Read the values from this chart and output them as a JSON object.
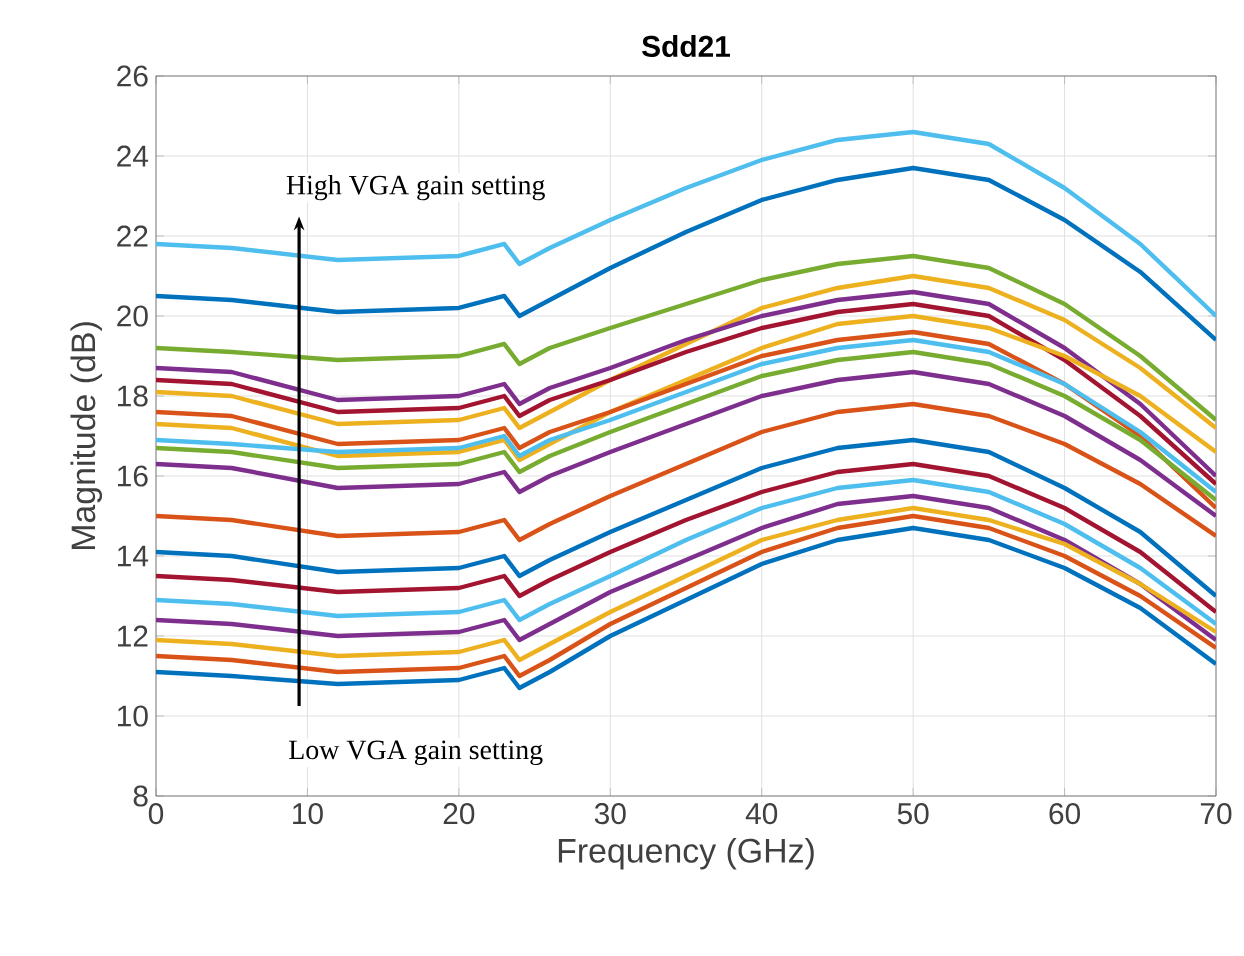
{
  "chart_data": {
    "type": "line",
    "title": "Sdd21",
    "xlabel": "Frequency (GHz)",
    "ylabel": "Magnitude (dB)",
    "xlim": [
      0,
      70
    ],
    "ylim": [
      8,
      26
    ],
    "xticks": [
      0,
      10,
      20,
      30,
      40,
      50,
      60,
      70
    ],
    "yticks": [
      8,
      10,
      12,
      14,
      16,
      18,
      20,
      22,
      24,
      26
    ],
    "grid": true,
    "marker": "none",
    "line_style": "solid",
    "annotations": [
      "High VGA gain setting",
      "Low VGA gain setting"
    ],
    "x": [
      0,
      5,
      12,
      20,
      23,
      24,
      26,
      30,
      35,
      40,
      45,
      50,
      55,
      60,
      65,
      70
    ],
    "series": [
      {
        "color": "#4dbeee",
        "values": [
          21.8,
          21.7,
          21.4,
          21.5,
          21.8,
          21.3,
          21.7,
          22.4,
          23.2,
          23.9,
          24.4,
          24.6,
          24.3,
          23.2,
          21.8,
          20.0
        ]
      },
      {
        "color": "#0072bd",
        "values": [
          20.5,
          20.4,
          20.1,
          20.2,
          20.5,
          20.0,
          20.4,
          21.2,
          22.1,
          22.9,
          23.4,
          23.7,
          23.4,
          22.4,
          21.1,
          19.4
        ]
      },
      {
        "color": "#77ac30",
        "values": [
          19.2,
          19.1,
          18.9,
          19.0,
          19.3,
          18.8,
          19.2,
          19.7,
          20.3,
          20.9,
          21.3,
          21.5,
          21.2,
          20.3,
          19.0,
          17.4
        ]
      },
      {
        "color": "#edb120",
        "values": [
          18.1,
          18.0,
          17.3,
          17.4,
          17.7,
          17.2,
          17.6,
          18.4,
          19.3,
          20.2,
          20.7,
          21.0,
          20.7,
          19.9,
          18.7,
          17.2
        ]
      },
      {
        "color": "#7e2f8e",
        "values": [
          18.7,
          18.6,
          17.9,
          18.0,
          18.3,
          17.8,
          18.2,
          18.7,
          19.4,
          20.0,
          20.4,
          20.6,
          20.3,
          19.2,
          17.8,
          16.0
        ]
      },
      {
        "color": "#a2142f",
        "values": [
          18.4,
          18.3,
          17.6,
          17.7,
          18.0,
          17.5,
          17.9,
          18.4,
          19.1,
          19.7,
          20.1,
          20.3,
          20.0,
          18.9,
          17.5,
          15.8
        ]
      },
      {
        "color": "#edb120",
        "values": [
          17.3,
          17.2,
          16.5,
          16.6,
          16.9,
          16.4,
          16.8,
          17.6,
          18.4,
          19.2,
          19.8,
          20.0,
          19.7,
          19.0,
          18.0,
          16.6
        ]
      },
      {
        "color": "#d95319",
        "values": [
          17.6,
          17.5,
          16.8,
          16.9,
          17.2,
          16.7,
          17.1,
          17.6,
          18.3,
          19.0,
          19.4,
          19.6,
          19.3,
          18.3,
          17.0,
          15.2
        ]
      },
      {
        "color": "#4dbeee",
        "values": [
          16.9,
          16.8,
          16.6,
          16.7,
          17.0,
          16.5,
          16.9,
          17.4,
          18.1,
          18.8,
          19.2,
          19.4,
          19.1,
          18.3,
          17.1,
          15.6
        ]
      },
      {
        "color": "#77ac30",
        "values": [
          16.7,
          16.6,
          16.2,
          16.3,
          16.6,
          16.1,
          16.5,
          17.1,
          17.8,
          18.5,
          18.9,
          19.1,
          18.8,
          18.0,
          16.9,
          15.4
        ]
      },
      {
        "color": "#7e2f8e",
        "values": [
          16.3,
          16.2,
          15.7,
          15.8,
          16.1,
          15.6,
          16.0,
          16.6,
          17.3,
          18.0,
          18.4,
          18.6,
          18.3,
          17.5,
          16.4,
          15.0
        ]
      },
      {
        "color": "#d95319",
        "values": [
          15.0,
          14.9,
          14.5,
          14.6,
          14.9,
          14.4,
          14.8,
          15.5,
          16.3,
          17.1,
          17.6,
          17.8,
          17.5,
          16.8,
          15.8,
          14.5
        ]
      },
      {
        "color": "#0072bd",
        "values": [
          14.1,
          14.0,
          13.6,
          13.7,
          14.0,
          13.5,
          13.9,
          14.6,
          15.4,
          16.2,
          16.7,
          16.9,
          16.6,
          15.7,
          14.6,
          13.0
        ]
      },
      {
        "color": "#a2142f",
        "values": [
          13.5,
          13.4,
          13.1,
          13.2,
          13.5,
          13.0,
          13.4,
          14.1,
          14.9,
          15.6,
          16.1,
          16.3,
          16.0,
          15.2,
          14.1,
          12.6
        ]
      },
      {
        "color": "#4dbeee",
        "values": [
          12.9,
          12.8,
          12.5,
          12.6,
          12.9,
          12.4,
          12.8,
          13.5,
          14.4,
          15.2,
          15.7,
          15.9,
          15.6,
          14.8,
          13.7,
          12.3
        ]
      },
      {
        "color": "#7e2f8e",
        "values": [
          12.4,
          12.3,
          12.0,
          12.1,
          12.4,
          11.9,
          12.3,
          13.1,
          13.9,
          14.7,
          15.3,
          15.5,
          15.2,
          14.4,
          13.3,
          11.9
        ]
      },
      {
        "color": "#edb120",
        "values": [
          11.9,
          11.8,
          11.5,
          11.6,
          11.9,
          11.4,
          11.8,
          12.6,
          13.5,
          14.4,
          14.9,
          15.2,
          14.9,
          14.3,
          13.3,
          12.1
        ]
      },
      {
        "color": "#d95319",
        "values": [
          11.5,
          11.4,
          11.1,
          11.2,
          11.5,
          11.0,
          11.4,
          12.3,
          13.2,
          14.1,
          14.7,
          15.0,
          14.7,
          14.0,
          13.0,
          11.7
        ]
      },
      {
        "color": "#0072bd",
        "values": [
          11.1,
          11.0,
          10.8,
          10.9,
          11.2,
          10.7,
          11.1,
          12.0,
          12.9,
          13.8,
          14.4,
          14.7,
          14.4,
          13.7,
          12.7,
          11.3
        ]
      }
    ]
  }
}
